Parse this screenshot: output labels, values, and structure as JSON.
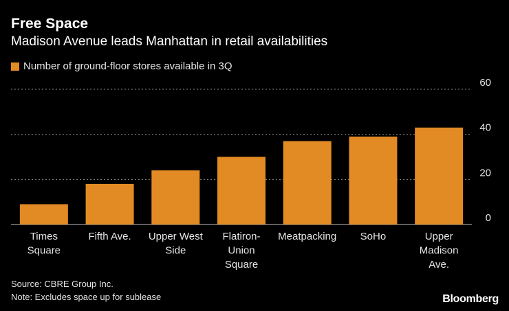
{
  "header": {
    "title": "Free Space",
    "subtitle": "Madison Avenue leads Manhattan in retail availabilities"
  },
  "legend": {
    "label": "Number of ground-floor stores available in 3Q",
    "color": "#e28a23"
  },
  "chart_data": {
    "type": "bar",
    "title": "Free Space",
    "subtitle": "Madison Avenue leads Manhattan in retail availabilities",
    "categories": [
      [
        "Times",
        "Square"
      ],
      [
        "Fifth Ave."
      ],
      [
        "Upper West",
        "Side"
      ],
      [
        "Flatiron-",
        "Union",
        "Square"
      ],
      [
        "Meatpacking"
      ],
      [
        "SoHo"
      ],
      [
        "Upper",
        "Madison",
        "Ave."
      ]
    ],
    "series": [
      {
        "name": "Number of ground-floor stores available in 3Q",
        "values": [
          9,
          18,
          24,
          30,
          37,
          39,
          43
        ]
      }
    ],
    "ylim": [
      0,
      60
    ],
    "yticks": [
      0,
      20,
      40,
      60
    ],
    "ytick_labels": [
      "0",
      "20",
      "40",
      "60"
    ],
    "grid": true,
    "yaxis_side": "right",
    "bar_color": "#e28a23"
  },
  "footer": {
    "source": "Source: CBRE Group Inc.",
    "note": "Note: Excludes space up for sublease",
    "brand": "Bloomberg"
  }
}
